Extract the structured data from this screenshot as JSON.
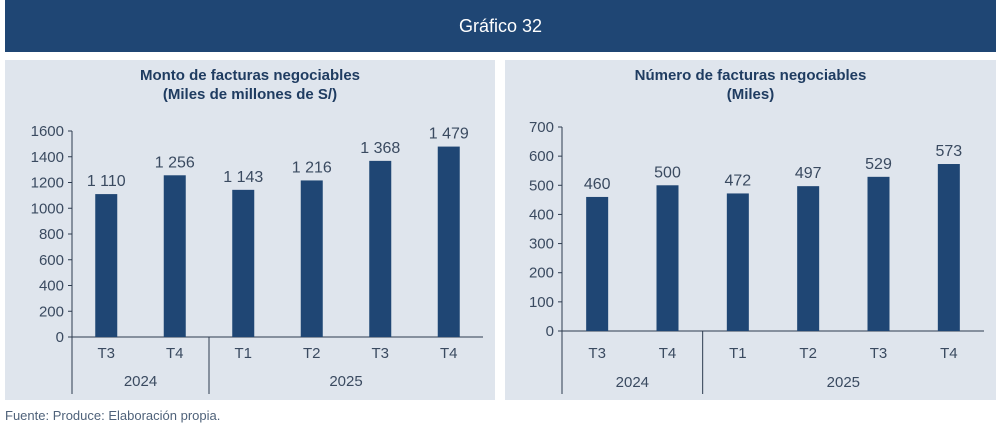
{
  "header": {
    "title": "Gráfico 32"
  },
  "footer": {
    "source": "Fuente: Produce: Elaboración propia."
  },
  "colors": {
    "header_bg": "#1f4674",
    "bar": "#1f4674",
    "panel_bg": "#dfe5ed",
    "text": "#3a4a60"
  },
  "chart_data": [
    {
      "type": "bar",
      "title_line1": "Monto de facturas negociables",
      "title_line2": "(Miles de millones de S/)",
      "categories": [
        "T3",
        "T4",
        "T1",
        "T2",
        "T3",
        "T4"
      ],
      "groups": [
        {
          "label": "2024",
          "count": 2
        },
        {
          "label": "2025",
          "count": 4
        }
      ],
      "values": [
        1110,
        1256,
        1143,
        1216,
        1368,
        1479
      ],
      "value_labels": [
        "1 110",
        "1 256",
        "1 143",
        "1 216",
        "1 368",
        "1 479"
      ],
      "yticks": [
        "0",
        "200",
        "400",
        "600",
        "800",
        "1000",
        "1200",
        "1400",
        "1600"
      ],
      "ylim": [
        0,
        1600
      ],
      "grid": false
    },
    {
      "type": "bar",
      "title_line1": "Número de facturas negociables",
      "title_line2": "(Miles)",
      "categories": [
        "T3",
        "T4",
        "T1",
        "T2",
        "T3",
        "T4"
      ],
      "groups": [
        {
          "label": "2024",
          "count": 2
        },
        {
          "label": "2025",
          "count": 4
        }
      ],
      "values": [
        460,
        500,
        472,
        497,
        529,
        573
      ],
      "value_labels": [
        "460",
        "500",
        "472",
        "497",
        "529",
        "573"
      ],
      "yticks": [
        "0",
        "100",
        "200",
        "300",
        "400",
        "500",
        "600",
        "700"
      ],
      "ylim": [
        0,
        700
      ],
      "grid": false
    }
  ]
}
